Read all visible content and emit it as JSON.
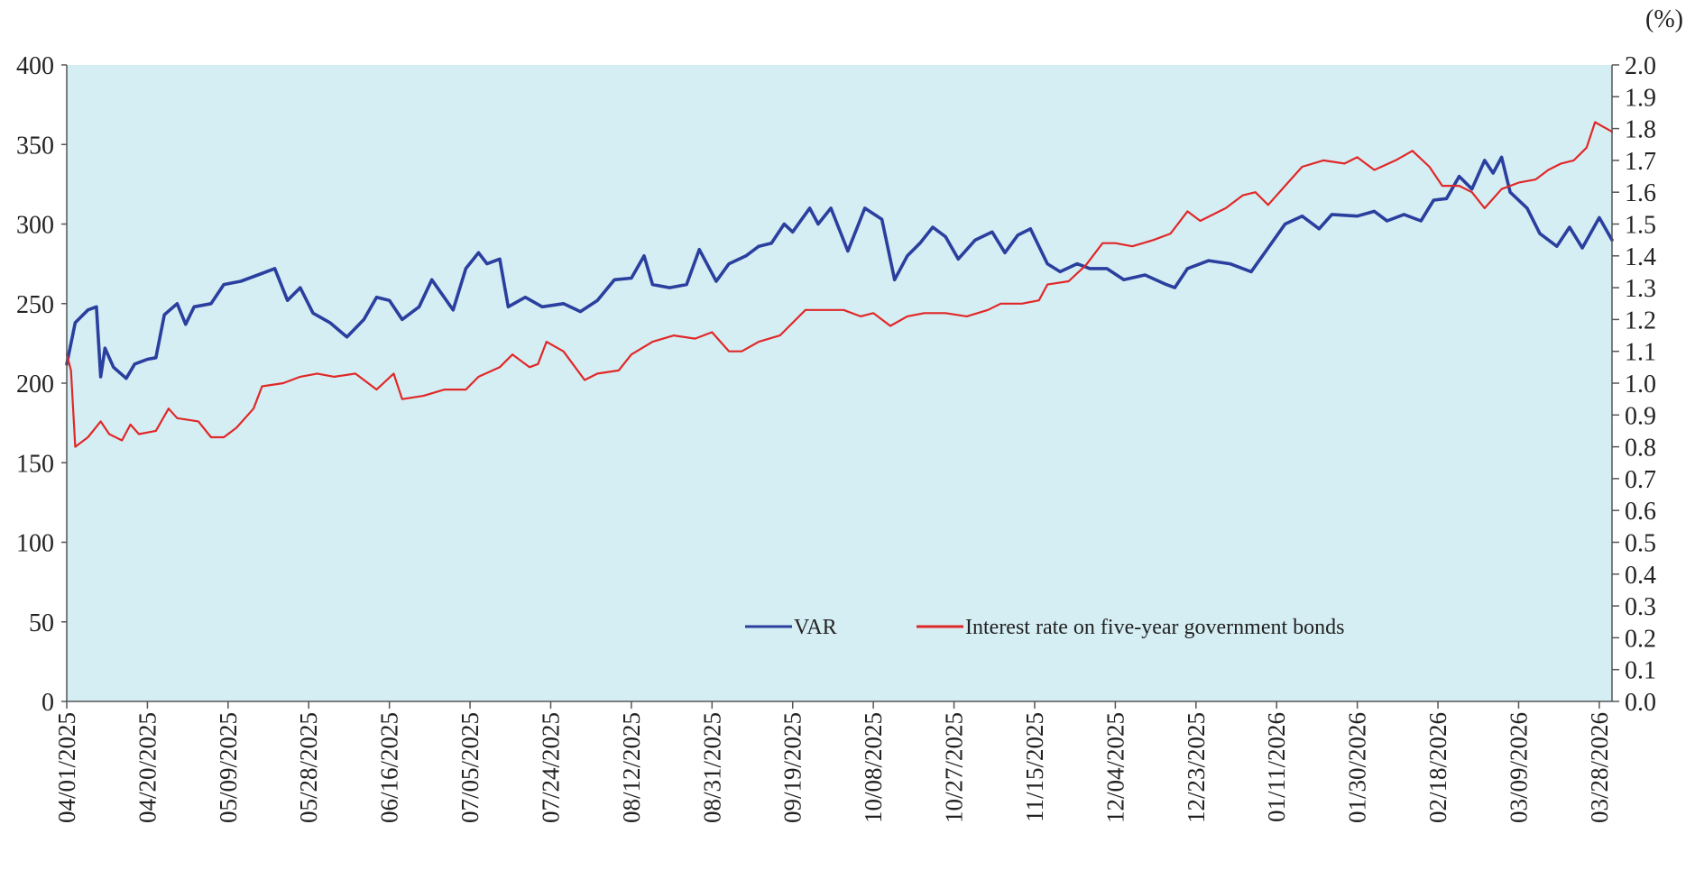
{
  "chart_data": {
    "type": "line",
    "y_right_unit": "(%)",
    "y_left_ticks": [
      "0",
      "50",
      "100",
      "150",
      "200",
      "250",
      "300",
      "350",
      "400"
    ],
    "y_right_ticks": [
      "0.0",
      "0.1",
      "0.2",
      "0.3",
      "0.4",
      "0.5",
      "0.6",
      "0.7",
      "0.8",
      "0.9",
      "1.0",
      "1.1",
      "1.2",
      "1.3",
      "1.4",
      "1.5",
      "1.6",
      "1.7",
      "1.8",
      "1.9",
      "2.0"
    ],
    "y_left_range": [
      0,
      400
    ],
    "y_right_range": [
      0,
      2.0
    ],
    "x_range": [
      "04/01/2025",
      "03/31/2026"
    ],
    "x_ticks": [
      "04/01/2025",
      "04/20/2025",
      "05/09/2025",
      "05/28/2025",
      "06/16/2025",
      "07/05/2025",
      "07/24/2025",
      "08/12/2025",
      "08/31/2025",
      "09/19/2025",
      "10/08/2025",
      "10/27/2025",
      "11/15/2025",
      "12/04/2025",
      "12/23/2025",
      "01/11/2026",
      "01/30/2026",
      "02/18/2026",
      "03/09/2026",
      "03/28/2026"
    ],
    "plot_background": "#d5eef4",
    "grid": false,
    "legend_placement": "bottom-center",
    "series": [
      {
        "name": "VAR",
        "axis": "left",
        "color": "#2a3f9e",
        "points": [
          [
            "04/01/2025",
            212
          ],
          [
            "04/03/2025",
            238
          ],
          [
            "04/06/2025",
            246
          ],
          [
            "04/08/2025",
            248
          ],
          [
            "04/09/2025",
            204
          ],
          [
            "04/10/2025",
            222
          ],
          [
            "04/12/2025",
            210
          ],
          [
            "04/15/2025",
            203
          ],
          [
            "04/17/2025",
            212
          ],
          [
            "04/20/2025",
            215
          ],
          [
            "04/22/2025",
            216
          ],
          [
            "04/24/2025",
            243
          ],
          [
            "04/27/2025",
            250
          ],
          [
            "04/29/2025",
            237
          ],
          [
            "05/01/2025",
            248
          ],
          [
            "05/05/2025",
            250
          ],
          [
            "05/08/2025",
            262
          ],
          [
            "05/12/2025",
            264
          ],
          [
            "05/16/2025",
            268
          ],
          [
            "05/20/2025",
            272
          ],
          [
            "05/23/2025",
            252
          ],
          [
            "05/26/2025",
            260
          ],
          [
            "05/29/2025",
            244
          ],
          [
            "06/02/2025",
            238
          ],
          [
            "06/06/2025",
            229
          ],
          [
            "06/10/2025",
            240
          ],
          [
            "06/13/2025",
            254
          ],
          [
            "06/16/2025",
            252
          ],
          [
            "06/19/2025",
            240
          ],
          [
            "06/23/2025",
            248
          ],
          [
            "06/26/2025",
            265
          ],
          [
            "07/01/2025",
            246
          ],
          [
            "07/04/2025",
            272
          ],
          [
            "07/07/2025",
            282
          ],
          [
            "07/09/2025",
            275
          ],
          [
            "07/12/2025",
            278
          ],
          [
            "07/14/2025",
            248
          ],
          [
            "07/18/2025",
            254
          ],
          [
            "07/22/2025",
            248
          ],
          [
            "07/27/2025",
            250
          ],
          [
            "07/31/2025",
            245
          ],
          [
            "08/04/2025",
            252
          ],
          [
            "08/08/2025",
            265
          ],
          [
            "08/12/2025",
            266
          ],
          [
            "08/15/2025",
            280
          ],
          [
            "08/17/2025",
            262
          ],
          [
            "08/21/2025",
            260
          ],
          [
            "08/25/2025",
            262
          ],
          [
            "08/28/2025",
            284
          ],
          [
            "09/01/2025",
            264
          ],
          [
            "09/04/2025",
            275
          ],
          [
            "09/08/2025",
            280
          ],
          [
            "09/11/2025",
            286
          ],
          [
            "09/14/2025",
            288
          ],
          [
            "09/17/2025",
            300
          ],
          [
            "09/19/2025",
            295
          ],
          [
            "09/23/2025",
            310
          ],
          [
            "09/25/2025",
            300
          ],
          [
            "09/28/2025",
            310
          ],
          [
            "10/02/2025",
            283
          ],
          [
            "10/06/2025",
            310
          ],
          [
            "10/10/2025",
            303
          ],
          [
            "10/13/2025",
            265
          ],
          [
            "10/16/2025",
            280
          ],
          [
            "10/19/2025",
            288
          ],
          [
            "10/22/2025",
            298
          ],
          [
            "10/25/2025",
            292
          ],
          [
            "10/28/2025",
            278
          ],
          [
            "11/01/2025",
            290
          ],
          [
            "11/05/2025",
            295
          ],
          [
            "11/08/2025",
            282
          ],
          [
            "11/11/2025",
            293
          ],
          [
            "11/14/2025",
            297
          ],
          [
            "11/18/2025",
            275
          ],
          [
            "11/21/2025",
            270
          ],
          [
            "11/25/2025",
            275
          ],
          [
            "11/28/2025",
            272
          ],
          [
            "12/02/2025",
            272
          ],
          [
            "12/06/2025",
            265
          ],
          [
            "12/11/2025",
            268
          ],
          [
            "12/16/2025",
            262
          ],
          [
            "12/18/2025",
            260
          ],
          [
            "12/21/2025",
            272
          ],
          [
            "12/26/2025",
            277
          ],
          [
            "12/31/2025",
            275
          ],
          [
            "01/05/2026",
            270
          ],
          [
            "01/09/2026",
            285
          ],
          [
            "01/13/2026",
            300
          ],
          [
            "01/17/2026",
            305
          ],
          [
            "01/21/2026",
            297
          ],
          [
            "01/24/2026",
            306
          ],
          [
            "01/30/2026",
            305
          ],
          [
            "02/03/2026",
            308
          ],
          [
            "02/06/2026",
            302
          ],
          [
            "02/10/2026",
            306
          ],
          [
            "02/14/2026",
            302
          ],
          [
            "02/17/2026",
            315
          ],
          [
            "02/20/2026",
            316
          ],
          [
            "02/23/2026",
            330
          ],
          [
            "02/26/2026",
            322
          ],
          [
            "03/01/2026",
            340
          ],
          [
            "03/03/2026",
            332
          ],
          [
            "03/05/2026",
            342
          ],
          [
            "03/07/2026",
            320
          ],
          [
            "03/11/2026",
            310
          ],
          [
            "03/14/2026",
            294
          ],
          [
            "03/18/2026",
            286
          ],
          [
            "03/21/2026",
            298
          ],
          [
            "03/24/2026",
            285
          ],
          [
            "03/28/2026",
            304
          ],
          [
            "03/31/2026",
            290
          ]
        ]
      },
      {
        "name": "Interest rate on five-year government bonds",
        "axis": "right",
        "color": "#e02828",
        "points": [
          [
            "04/01/2025",
            1.09
          ],
          [
            "04/02/2025",
            1.04
          ],
          [
            "04/03/2025",
            0.8
          ],
          [
            "04/06/2025",
            0.83
          ],
          [
            "04/09/2025",
            0.88
          ],
          [
            "04/11/2025",
            0.84
          ],
          [
            "04/14/2025",
            0.82
          ],
          [
            "04/16/2025",
            0.87
          ],
          [
            "04/18/2025",
            0.84
          ],
          [
            "04/22/2025",
            0.85
          ],
          [
            "04/25/2025",
            0.92
          ],
          [
            "04/27/2025",
            0.89
          ],
          [
            "05/02/2025",
            0.88
          ],
          [
            "05/05/2025",
            0.83
          ],
          [
            "05/08/2025",
            0.83
          ],
          [
            "05/11/2025",
            0.86
          ],
          [
            "05/15/2025",
            0.92
          ],
          [
            "05/17/2025",
            0.99
          ],
          [
            "05/22/2025",
            1.0
          ],
          [
            "05/26/2025",
            1.02
          ],
          [
            "05/30/2025",
            1.03
          ],
          [
            "06/03/2025",
            1.02
          ],
          [
            "06/08/2025",
            1.03
          ],
          [
            "06/13/2025",
            0.98
          ],
          [
            "06/17/2025",
            1.03
          ],
          [
            "06/19/2025",
            0.95
          ],
          [
            "06/24/2025",
            0.96
          ],
          [
            "06/29/2025",
            0.98
          ],
          [
            "07/04/2025",
            0.98
          ],
          [
            "07/07/2025",
            1.02
          ],
          [
            "07/12/2025",
            1.05
          ],
          [
            "07/15/2025",
            1.09
          ],
          [
            "07/19/2025",
            1.05
          ],
          [
            "07/21/2025",
            1.06
          ],
          [
            "07/23/2025",
            1.13
          ],
          [
            "07/27/2025",
            1.1
          ],
          [
            "08/01/2025",
            1.01
          ],
          [
            "08/04/2025",
            1.03
          ],
          [
            "08/09/2025",
            1.04
          ],
          [
            "08/12/2025",
            1.09
          ],
          [
            "08/17/2025",
            1.13
          ],
          [
            "08/22/2025",
            1.15
          ],
          [
            "08/27/2025",
            1.14
          ],
          [
            "08/31/2025",
            1.16
          ],
          [
            "09/04/2025",
            1.1
          ],
          [
            "09/07/2025",
            1.1
          ],
          [
            "09/11/2025",
            1.13
          ],
          [
            "09/16/2025",
            1.15
          ],
          [
            "09/22/2025",
            1.23
          ],
          [
            "09/27/2025",
            1.23
          ],
          [
            "10/01/2025",
            1.23
          ],
          [
            "10/05/2025",
            1.21
          ],
          [
            "10/08/2025",
            1.22
          ],
          [
            "10/12/2025",
            1.18
          ],
          [
            "10/16/2025",
            1.21
          ],
          [
            "10/20/2025",
            1.22
          ],
          [
            "10/25/2025",
            1.22
          ],
          [
            "10/30/2025",
            1.21
          ],
          [
            "11/04/2025",
            1.23
          ],
          [
            "11/07/2025",
            1.25
          ],
          [
            "11/12/2025",
            1.25
          ],
          [
            "11/16/2025",
            1.26
          ],
          [
            "11/18/2025",
            1.31
          ],
          [
            "11/23/2025",
            1.32
          ],
          [
            "11/27/2025",
            1.37
          ],
          [
            "12/01/2025",
            1.44
          ],
          [
            "12/04/2025",
            1.44
          ],
          [
            "12/08/2025",
            1.43
          ],
          [
            "12/13/2025",
            1.45
          ],
          [
            "12/17/2025",
            1.47
          ],
          [
            "12/21/2025",
            1.54
          ],
          [
            "12/24/2025",
            1.51
          ],
          [
            "12/30/2025",
            1.55
          ],
          [
            "01/03/2026",
            1.59
          ],
          [
            "01/06/2026",
            1.6
          ],
          [
            "01/09/2026",
            1.56
          ],
          [
            "01/13/2026",
            1.62
          ],
          [
            "01/17/2026",
            1.68
          ],
          [
            "01/22/2026",
            1.7
          ],
          [
            "01/27/2026",
            1.69
          ],
          [
            "01/30/2026",
            1.71
          ],
          [
            "02/03/2026",
            1.67
          ],
          [
            "02/08/2026",
            1.7
          ],
          [
            "02/12/2026",
            1.73
          ],
          [
            "02/16/2026",
            1.68
          ],
          [
            "02/19/2026",
            1.62
          ],
          [
            "02/23/2026",
            1.62
          ],
          [
            "02/26/2026",
            1.6
          ],
          [
            "03/01/2026",
            1.55
          ],
          [
            "03/05/2026",
            1.61
          ],
          [
            "03/09/2026",
            1.63
          ],
          [
            "03/13/2026",
            1.64
          ],
          [
            "03/16/2026",
            1.67
          ],
          [
            "03/19/2026",
            1.69
          ],
          [
            "03/22/2026",
            1.7
          ],
          [
            "03/25/2026",
            1.74
          ],
          [
            "03/27/2026",
            1.82
          ],
          [
            "03/31/2026",
            1.79
          ]
        ]
      }
    ]
  }
}
